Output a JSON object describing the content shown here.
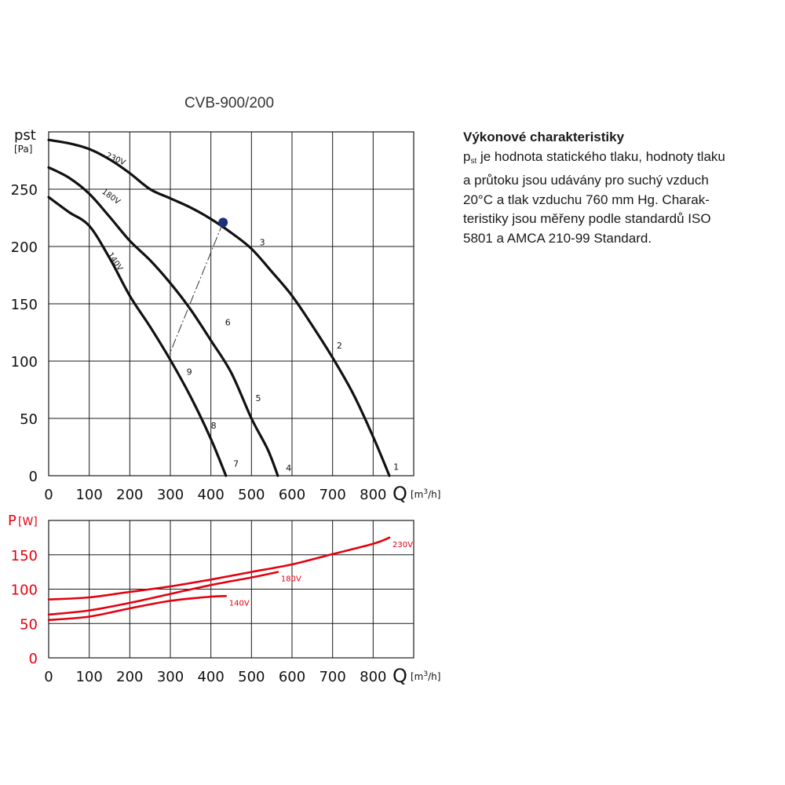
{
  "title": "CVB-900/200",
  "pressure_axis": {
    "symbol": "pst",
    "unit": "[Pa]"
  },
  "power_axis": {
    "symbol": "P",
    "unit": "[W]"
  },
  "flow_axis": {
    "symbol": "Q",
    "unit_prefix": "[m",
    "unit_exp": "3",
    "unit_suffix": "/h]"
  },
  "description": {
    "heading": "Výkonové charakteristiky",
    "symbol_main": "p",
    "symbol_sub": "st",
    "lines": [
      " je hodnota statického tlaku, hodnoty tlaku",
      "a průtoku jsou udávány pro suchý vzduch",
      "20°C a tlak vzduchu 760 mm Hg. Charak-",
      "teristiky jsou měřeny podle standardů ISO",
      "5801 a AMCA 210-99 Standard."
    ]
  },
  "colors": {
    "pressure_curve": "#111111",
    "power_curve": "#e3000f",
    "grid": "#1a1a1a",
    "operating_point": "#1f2f7a",
    "power_axis_text": "#e3000f"
  },
  "chart_data": [
    {
      "type": "line",
      "title": "CVB-900/200",
      "xlabel": "Q [m3/h]",
      "ylabel": "pst [Pa]",
      "xlim": [
        0,
        900
      ],
      "ylim": [
        0,
        300
      ],
      "x_ticks": [
        0,
        100,
        200,
        300,
        400,
        500,
        600,
        700,
        800
      ],
      "y_ticks": [
        0,
        50,
        100,
        150,
        200,
        250
      ],
      "grid": true,
      "series": [
        {
          "name": "230V",
          "x": [
            0,
            50,
            100,
            150,
            200,
            250,
            300,
            350,
            400,
            450,
            500,
            550,
            600,
            650,
            700,
            750,
            800,
            840
          ],
          "y": [
            293,
            290,
            285,
            276,
            264,
            250,
            242,
            234,
            224,
            212,
            198,
            178,
            157,
            131,
            103,
            72,
            34,
            0
          ]
        },
        {
          "name": "180V",
          "x": [
            0,
            50,
            100,
            150,
            200,
            250,
            300,
            350,
            400,
            450,
            500,
            540,
            565
          ],
          "y": [
            269,
            260,
            246,
            226,
            205,
            188,
            168,
            145,
            118,
            90,
            50,
            23,
            0
          ]
        },
        {
          "name": "140V",
          "x": [
            0,
            50,
            100,
            150,
            200,
            250,
            300,
            350,
            400,
            437
          ],
          "y": [
            243,
            230,
            218,
            190,
            157,
            130,
            101,
            69,
            32,
            0
          ]
        }
      ],
      "operating_point": {
        "x": 430,
        "y": 221
      },
      "system_line": {
        "x": [
          430,
          298
        ],
        "y": [
          221,
          106
        ]
      },
      "point_labels": [
        {
          "text": "1",
          "x": 850,
          "y": 5
        },
        {
          "text": "2",
          "x": 710,
          "y": 111
        },
        {
          "text": "3",
          "x": 520,
          "y": 201
        },
        {
          "text": "4",
          "x": 585,
          "y": 4
        },
        {
          "text": "5",
          "x": 510,
          "y": 65
        },
        {
          "text": "6",
          "x": 435,
          "y": 131
        },
        {
          "text": "7",
          "x": 455,
          "y": 8
        },
        {
          "text": "8",
          "x": 400,
          "y": 41
        },
        {
          "text": "9",
          "x": 340,
          "y": 88
        }
      ],
      "curve_labels": [
        {
          "text": "230V",
          "x": 140,
          "y": 278,
          "angle": 24
        },
        {
          "text": "180V",
          "x": 130,
          "y": 247,
          "angle": 36
        },
        {
          "text": "140V",
          "x": 145,
          "y": 193,
          "angle": 56
        }
      ]
    },
    {
      "type": "line",
      "xlabel": "Q [m3/h]",
      "ylabel": "P [W]",
      "xlim": [
        0,
        900
      ],
      "ylim": [
        0,
        200
      ],
      "x_ticks": [
        0,
        100,
        200,
        300,
        400,
        500,
        600,
        700,
        800
      ],
      "y_ticks": [
        0,
        50,
        100,
        150
      ],
      "grid": true,
      "series": [
        {
          "name": "230V",
          "x": [
            0,
            100,
            200,
            300,
            400,
            500,
            600,
            700,
            800,
            840
          ],
          "y": [
            85,
            88,
            96,
            104,
            114,
            125,
            136,
            151,
            166,
            175
          ]
        },
        {
          "name": "180V",
          "x": [
            0,
            100,
            200,
            300,
            400,
            500,
            565
          ],
          "y": [
            63,
            69,
            80,
            93,
            106,
            117,
            125
          ]
        },
        {
          "name": "140V",
          "x": [
            0,
            100,
            200,
            300,
            400,
            437
          ],
          "y": [
            55,
            60,
            72,
            83,
            89,
            90
          ]
        }
      ]
    }
  ]
}
